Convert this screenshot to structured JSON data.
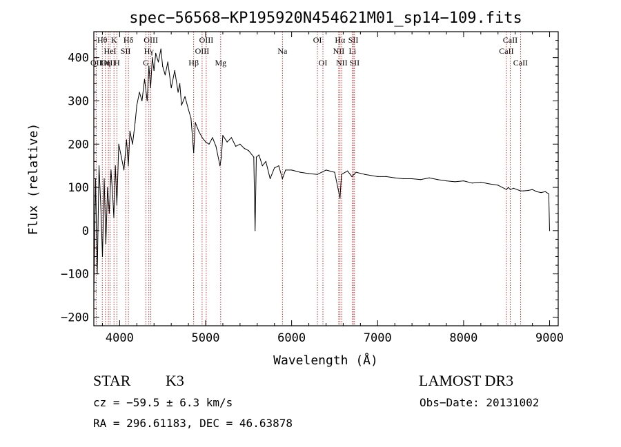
{
  "chart_data": {
    "type": "line",
    "title": "spec−56568−KP195920N454621M01_sp14−109.fits",
    "xlabel": "Wavelength (Å)",
    "ylabel": "Flux (relative)",
    "xlim": [
      3700,
      9100
    ],
    "ylim": [
      -220,
      460
    ],
    "xticks": [
      4000,
      5000,
      6000,
      7000,
      8000,
      9000
    ],
    "xtick_labels": [
      "4000",
      "5000",
      "6000",
      "7000",
      "8000",
      "9000"
    ],
    "yticks": [
      -200,
      -100,
      0,
      100,
      200,
      300,
      400
    ],
    "ytick_labels": [
      "−200",
      "−100",
      "0",
      "100",
      "200",
      "300",
      "400"
    ],
    "grid": false,
    "series": [
      {
        "name": "flux",
        "x": [
          3700,
          3720,
          3740,
          3760,
          3780,
          3800,
          3820,
          3840,
          3860,
          3880,
          3900,
          3920,
          3933,
          3950,
          3968,
          3990,
          4020,
          4050,
          4080,
          4101,
          4120,
          4150,
          4180,
          4200,
          4230,
          4260,
          4290,
          4320,
          4340,
          4360,
          4380,
          4400,
          4420,
          4450,
          4480,
          4500,
          4530,
          4560,
          4600,
          4640,
          4680,
          4700,
          4720,
          4760,
          4800,
          4830,
          4861,
          4880,
          4920,
          4960,
          5000,
          5040,
          5080,
          5120,
          5167,
          5183,
          5200,
          5250,
          5300,
          5350,
          5400,
          5450,
          5500,
          5560,
          5575,
          5590,
          5620,
          5660,
          5700,
          5750,
          5800,
          5850,
          5893,
          5930,
          6000,
          6100,
          6200,
          6300,
          6400,
          6500,
          6563,
          6580,
          6650,
          6700,
          6750,
          6850,
          7000,
          7100,
          7200,
          7300,
          7400,
          7500,
          7600,
          7700,
          7800,
          7900,
          8000,
          8100,
          8200,
          8300,
          8400,
          8498,
          8520,
          8542,
          8580,
          8662,
          8700,
          8750,
          8800,
          8850,
          8900,
          8950,
          8990,
          9000
        ],
        "values": [
          -150,
          120,
          -100,
          150,
          60,
          -60,
          120,
          -30,
          100,
          40,
          140,
          80,
          30,
          150,
          60,
          200,
          170,
          140,
          210,
          150,
          230,
          200,
          250,
          290,
          320,
          300,
          350,
          300,
          380,
          330,
          400,
          370,
          410,
          390,
          420,
          380,
          360,
          390,
          330,
          370,
          320,
          340,
          290,
          310,
          280,
          260,
          180,
          250,
          230,
          215,
          205,
          200,
          215,
          195,
          150,
          170,
          220,
          205,
          215,
          195,
          200,
          190,
          185,
          170,
          0,
          170,
          175,
          150,
          160,
          120,
          145,
          150,
          120,
          140,
          140,
          135,
          132,
          130,
          140,
          135,
          75,
          130,
          138,
          125,
          135,
          130,
          125,
          125,
          122,
          120,
          120,
          118,
          122,
          118,
          115,
          113,
          115,
          110,
          112,
          108,
          105,
          95,
          100,
          95,
          98,
          92,
          92,
          93,
          95,
          90,
          88,
          90,
          85,
          0
        ]
      }
    ],
    "lines": [
      {
        "label": "Hθ",
        "x": 3798,
        "row": 1
      },
      {
        "label": "Hη",
        "x": 3835,
        "row": 3
      },
      {
        "label": "OII",
        "x": 3727,
        "row": 3
      },
      {
        "label": "OIII",
        "x": 3869,
        "row": 3
      },
      {
        "label": "HeI",
        "x": 3889,
        "row": 2
      },
      {
        "label": "K",
        "x": 3934,
        "row": 1
      },
      {
        "label": "H",
        "x": 3968,
        "row": 3
      },
      {
        "label": "SII",
        "x": 4070,
        "row": 2
      },
      {
        "label": "Hδ",
        "x": 4102,
        "row": 1
      },
      {
        "label": "OIII",
        "x": 4363,
        "row": 1
      },
      {
        "label": "G",
        "x": 4305,
        "row": 3
      },
      {
        "label": "Hγ",
        "x": 4340,
        "row": 2
      },
      {
        "label": "Hβ",
        "x": 4861,
        "row": 3
      },
      {
        "label": "OIII",
        "x": 4959,
        "row": 2
      },
      {
        "label": "OIII",
        "x": 5007,
        "row": 1
      },
      {
        "label": "Mg",
        "x": 5175,
        "row": 3
      },
      {
        "label": "Na",
        "x": 5893,
        "row": 2
      },
      {
        "label": "OI",
        "x": 6300,
        "row": 1
      },
      {
        "label": "OI",
        "x": 6364,
        "row": 3
      },
      {
        "label": "NII",
        "x": 6548,
        "row": 2
      },
      {
        "label": "Hα",
        "x": 6563,
        "row": 1
      },
      {
        "label": "NII",
        "x": 6583,
        "row": 3
      },
      {
        "label": "Li",
        "x": 6708,
        "row": 2
      },
      {
        "label": "SII",
        "x": 6717,
        "row": 1
      },
      {
        "label": "SII",
        "x": 6731,
        "row": 3
      },
      {
        "label": "CaII",
        "x": 8498,
        "row": 2
      },
      {
        "label": "CaII",
        "x": 8542,
        "row": 1
      },
      {
        "label": "CaII",
        "x": 8662,
        "row": 3
      }
    ]
  },
  "info": {
    "class": "STAR",
    "subclass": "K3",
    "survey": "LAMOST DR3",
    "cz": "cz = −59.5 ± 6.3 km/s",
    "obs_date": "Obs−Date: 20131002",
    "coords": "RA = 296.61183, DEC =  46.63878"
  }
}
